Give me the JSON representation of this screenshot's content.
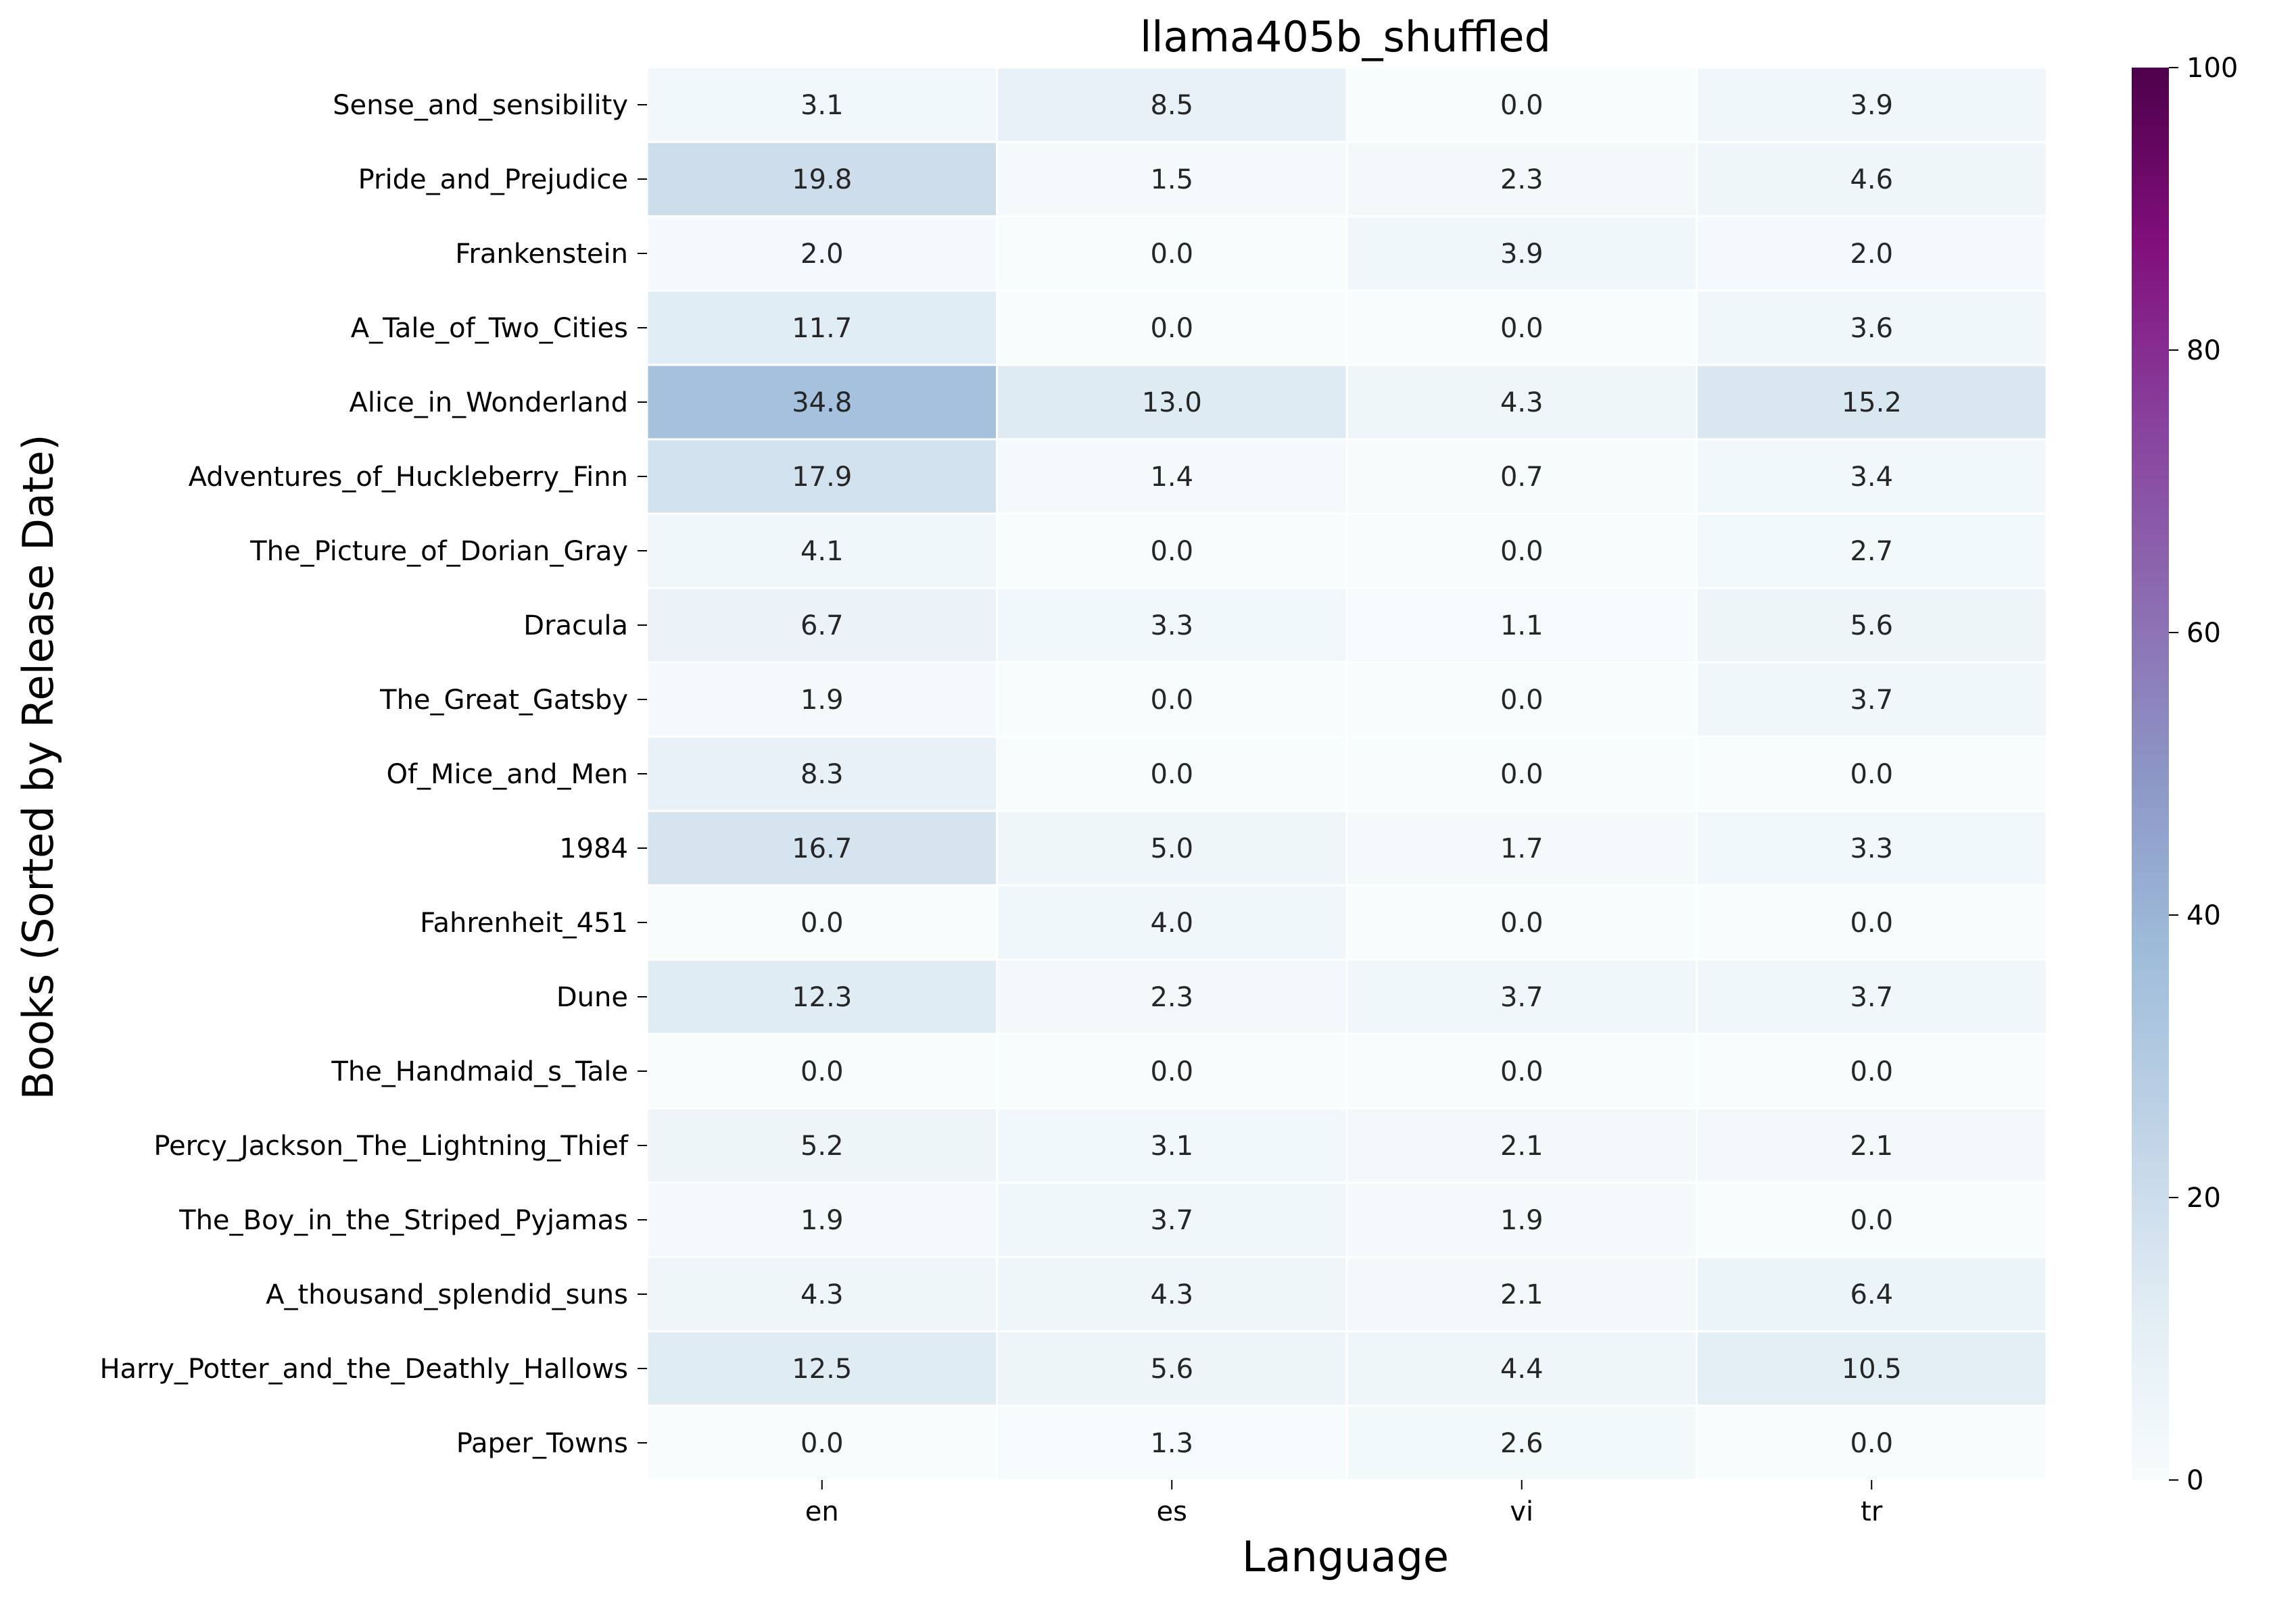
{
  "chart_data": {
    "type": "heatmap",
    "title": "llama405b_shuffled",
    "xlabel": "Language",
    "ylabel": "Books (Sorted by Release Date)",
    "x_categories": [
      "en",
      "es",
      "vi",
      "tr"
    ],
    "y_categories": [
      "Sense_and_sensibility",
      "Pride_and_Prejudice",
      "Frankenstein",
      "A_Tale_of_Two_Cities",
      "Alice_in_Wonderland",
      "Adventures_of_Huckleberry_Finn",
      "The_Picture_of_Dorian_Gray",
      "Dracula",
      "The_Great_Gatsby",
      "Of_Mice_and_Men",
      "1984",
      "Fahrenheit_451",
      "Dune",
      "The_Handmaid_s_Tale",
      "Percy_Jackson_The_Lightning_Thief",
      "The_Boy_in_the_Striped_Pyjamas",
      "A_thousand_splendid_suns",
      "Harry_Potter_and_the_Deathly_Hallows",
      "Paper_Towns"
    ],
    "values": [
      [
        3.1,
        8.5,
        0.0,
        3.9
      ],
      [
        19.8,
        1.5,
        2.3,
        4.6
      ],
      [
        2.0,
        0.0,
        3.9,
        2.0
      ],
      [
        11.7,
        0.0,
        0.0,
        3.6
      ],
      [
        34.8,
        13.0,
        4.3,
        15.2
      ],
      [
        17.9,
        1.4,
        0.7,
        3.4
      ],
      [
        4.1,
        0.0,
        0.0,
        2.7
      ],
      [
        6.7,
        3.3,
        1.1,
        5.6
      ],
      [
        1.9,
        0.0,
        0.0,
        3.7
      ],
      [
        8.3,
        0.0,
        0.0,
        0.0
      ],
      [
        16.7,
        5.0,
        1.7,
        3.3
      ],
      [
        0.0,
        4.0,
        0.0,
        0.0
      ],
      [
        12.3,
        2.3,
        3.7,
        3.7
      ],
      [
        0.0,
        0.0,
        0.0,
        0.0
      ],
      [
        5.2,
        3.1,
        2.1,
        2.1
      ],
      [
        1.9,
        3.7,
        1.9,
        0.0
      ],
      [
        4.3,
        4.3,
        2.1,
        6.4
      ],
      [
        12.5,
        5.6,
        4.4,
        10.5
      ],
      [
        0.0,
        1.3,
        2.6,
        0.0
      ]
    ],
    "colormap": "BuPu",
    "colormap_stops": [
      "#f7fcfd",
      "#e0ecf4",
      "#bfd3e6",
      "#9ebcda",
      "#8c96c6",
      "#8c6bb1",
      "#88419d",
      "#810f7c",
      "#4d004b"
    ],
    "vmin": 0,
    "vmax": 100,
    "colorbar_ticks": [
      0,
      20,
      40,
      60,
      80,
      100
    ],
    "cell_border_color": "#ffffff",
    "annotation_format": "0.1f",
    "grid": false
  }
}
